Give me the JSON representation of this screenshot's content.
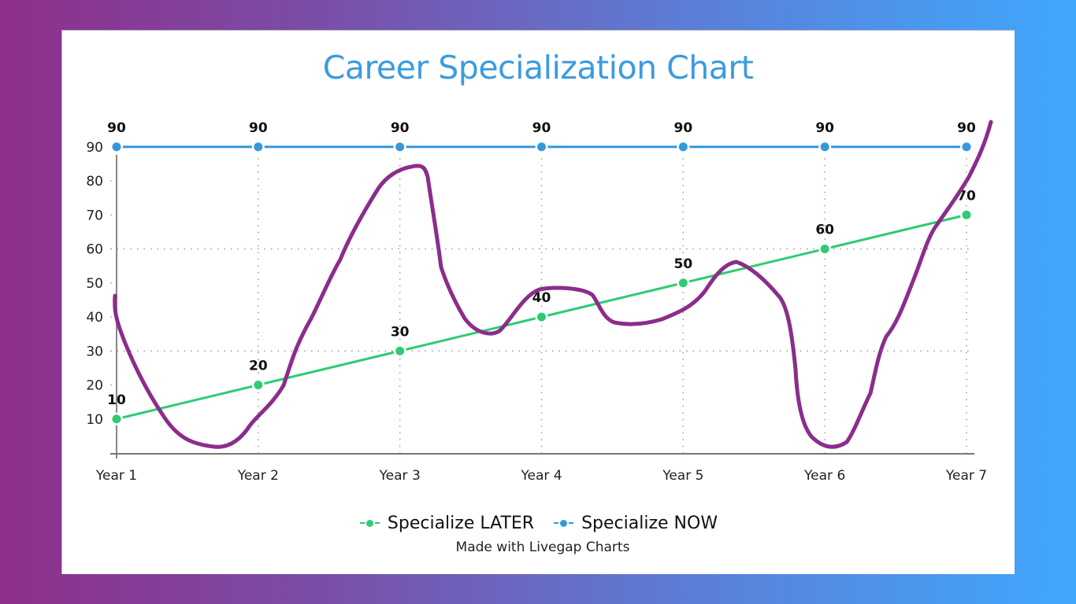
{
  "chart_data": {
    "type": "line",
    "title": "Career Specialization Chart",
    "xlabel": "",
    "ylabel": "",
    "categories": [
      "Year 1",
      "Year 2",
      "Year 3",
      "Year 4",
      "Year 5",
      "Year 6",
      "Year 7"
    ],
    "series": [
      {
        "name": "Specialize LATER",
        "color": "#2ecc71",
        "values": [
          10,
          20,
          30,
          40,
          50,
          60,
          70
        ]
      },
      {
        "name": "Specialize NOW",
        "color": "#3498db",
        "values": [
          90,
          90,
          90,
          90,
          90,
          90,
          90
        ]
      }
    ],
    "y_ticks": [
      10,
      20,
      30,
      40,
      50,
      60,
      70,
      80,
      90
    ],
    "ylim": [
      0,
      90
    ],
    "grid": {
      "horizontal_dotted_at": [
        30,
        60
      ],
      "vertical_dotted": true
    },
    "data_labels": true,
    "legend_position": "bottom",
    "annotation": {
      "type": "freehand-line",
      "color": "#8b2d8b",
      "description": "hand-drawn purple squiggle across plot"
    }
  },
  "page": {
    "title": "Career Specialization Chart",
    "legend": [
      {
        "label": "Specialize LATER",
        "color": "#2ecc71"
      },
      {
        "label": "Specialize NOW",
        "color": "#3498db"
      }
    ],
    "credit": "Made with Livegap Charts"
  },
  "colors": {
    "title": "#3a9be0",
    "background_left": "#8e2f8a",
    "background_right": "#3fa8fd",
    "annotation": "#8b2d8b"
  }
}
